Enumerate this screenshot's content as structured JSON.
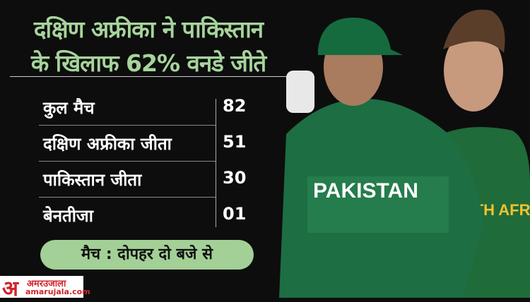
{
  "headline": {
    "line1": "दक्षिण अफ्रीका ने पाकिस्तान",
    "line2": "के खिलाफ 62% वनडे जीते"
  },
  "stats": [
    {
      "label": "कुल मैच",
      "value": "82"
    },
    {
      "label": "दक्षिण अफ्रीका जीता",
      "value": "51"
    },
    {
      "label": "पाकिस्तान जीता",
      "value": "30"
    },
    {
      "label": "बेनतीजा",
      "value": "01"
    }
  ],
  "match_time": "मैच : दोपहर दो बजे से",
  "brand": {
    "logo_mark": "अ",
    "name_hindi": "अमरउजाला",
    "domain": "amarujala.com"
  },
  "photo": {
    "jersey_text_left": "PAKISTAN",
    "jersey_text_right": "SOUTH AFRICA"
  },
  "colors": {
    "accent_green": "#a6d49b",
    "background": "#0d0d0d",
    "brand_red": "#d2232a"
  }
}
